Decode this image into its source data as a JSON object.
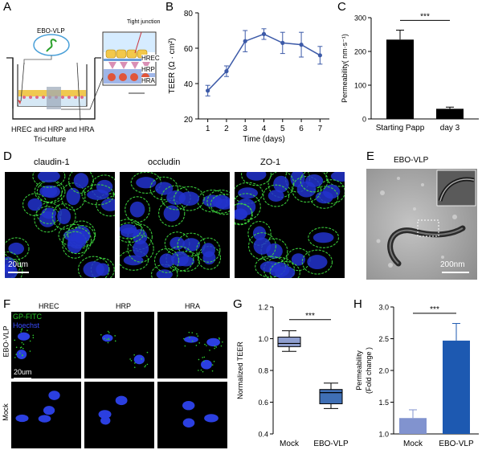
{
  "panel_letters": [
    "A",
    "B",
    "C",
    "D",
    "E",
    "F",
    "G",
    "H"
  ],
  "panelA": {
    "vlp_label": "EBO-VLP",
    "tight_junction": "Tight junction",
    "layers": [
      "HREC",
      "HRP",
      "HRA"
    ],
    "caption_line1": "HREC and HRP and HRA",
    "caption_line2": "Tri-culture"
  },
  "panelD": {
    "stains": [
      "claudin-1",
      "occludin",
      "ZO-1"
    ],
    "scale": "20um"
  },
  "panelE": {
    "title": "EBO-VLP",
    "scale": "200nm"
  },
  "panelF": {
    "columns": [
      "HREC",
      "HRP",
      "HRA"
    ],
    "rows": [
      "EBO-VLP",
      "Mock"
    ],
    "legend_gp": "GP-FITC",
    "legend_hoechst": "Hoechst",
    "scale": "20um"
  },
  "colors": {
    "line_blue": "#3c5aa8",
    "gp_green": "#28c828",
    "hoechst_blue": "#3a4cff",
    "box_light": "#8f9fd0",
    "box_dark": "#3f6fb5",
    "bar_dark_blue": "#1d59b1",
    "bar_light": "#8193cf"
  },
  "chart_data": [
    {
      "id": "B",
      "type": "line",
      "xlabel": "Time (days)",
      "ylabel": "TEER (Ω · cm²)",
      "x": [
        1,
        2,
        3,
        4,
        5,
        6,
        7
      ],
      "y": [
        36,
        47,
        64,
        68,
        63,
        62,
        56
      ],
      "err": [
        3,
        3,
        6,
        3,
        6,
        7,
        5
      ],
      "xlim": [
        0.5,
        7.5
      ],
      "ylim": [
        20,
        80
      ],
      "yticks": [
        20,
        40,
        60,
        80
      ]
    },
    {
      "id": "C",
      "type": "bar",
      "categories": [
        "Starting Papp",
        "day 3"
      ],
      "values": [
        235,
        30
      ],
      "err": [
        28,
        5
      ],
      "ylabel": "Permeability( nm·s⁻¹)",
      "ylim": [
        0,
        300
      ],
      "yticks": [
        0,
        100,
        200,
        300
      ],
      "significance": "***"
    },
    {
      "id": "G",
      "type": "box",
      "categories": [
        "Mock",
        "EBO-VLP"
      ],
      "boxes": [
        {
          "min": 0.92,
          "q1": 0.95,
          "median": 0.97,
          "q3": 1.01,
          "max": 1.05
        },
        {
          "min": 0.56,
          "q1": 0.59,
          "median": 0.66,
          "q3": 0.68,
          "max": 0.72
        }
      ],
      "ylabel": "Normalized TEER",
      "ylim": [
        0.4,
        1.2
      ],
      "yticks": [
        0.4,
        0.6,
        0.8,
        1.0,
        1.2
      ],
      "significance": "***"
    },
    {
      "id": "H",
      "type": "bar",
      "categories": [
        "Mock",
        "EBO-VLP"
      ],
      "values": [
        1.25,
        2.47
      ],
      "err": [
        0.13,
        0.27
      ],
      "ylabel": "Permeability (Fold change )",
      "ylim": [
        1.0,
        3.0
      ],
      "yticks": [
        1.0,
        1.5,
        2.0,
        2.5,
        3.0
      ],
      "significance": "***"
    }
  ]
}
